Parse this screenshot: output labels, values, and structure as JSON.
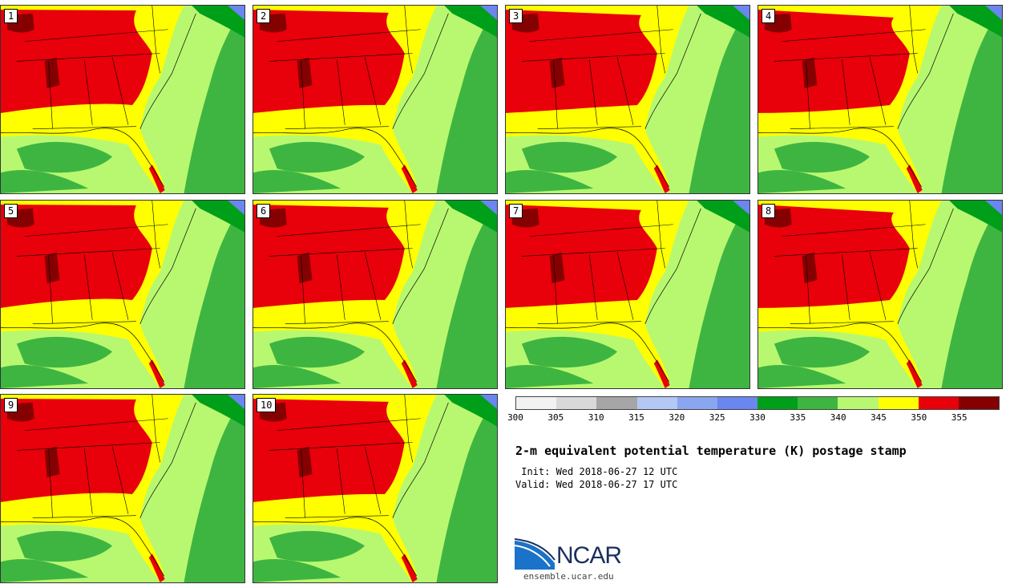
{
  "panels": [
    {
      "label": "1"
    },
    {
      "label": "2"
    },
    {
      "label": "3"
    },
    {
      "label": "4"
    },
    {
      "label": "5"
    },
    {
      "label": "6"
    },
    {
      "label": "7"
    },
    {
      "label": "8"
    },
    {
      "label": "9"
    },
    {
      "label": "10"
    }
  ],
  "colorbar": {
    "ticks": [
      "300",
      "305",
      "310",
      "315",
      "320",
      "325",
      "330",
      "335",
      "340",
      "345",
      "350",
      "355"
    ],
    "colors": [
      "#f2f2f2",
      "#d9d9d9",
      "#a6a6a6",
      "#b4c8f5",
      "#8aa6f0",
      "#6b86ee",
      "#009f1a",
      "#3fb541",
      "#b8f870",
      "#ffff00",
      "#e8000a",
      "#850000"
    ]
  },
  "title": "2-m equivalent potential temperature (K) postage stamp",
  "init_line": " Init: Wed 2018-06-27 12 UTC",
  "valid_line": "Valid: Wed 2018-06-27 17 UTC",
  "logo": {
    "text": "NCAR",
    "url": "ensemble.ucar.edu"
  },
  "colors": {
    "ocean": "#b8f870",
    "atlantic": "#3fb541",
    "dark_green": "#009f1a",
    "yellow": "#ffff00",
    "red": "#e8000a",
    "dark_red": "#850000",
    "water_blue": "#6b86ee"
  }
}
